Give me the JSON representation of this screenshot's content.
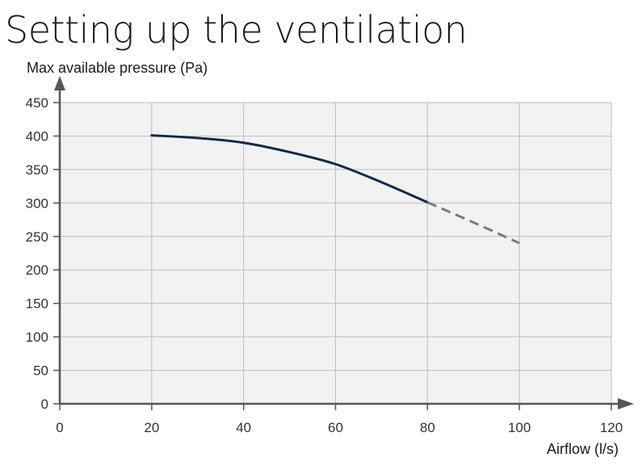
{
  "page": {
    "title": "Setting up the ventilation"
  },
  "chart_data": {
    "type": "line",
    "xlabel": "Airflow (l/s)",
    "ylabel": "Max available pressure (Pa)",
    "xlim": [
      0,
      120
    ],
    "ylim": [
      0,
      450
    ],
    "xticks": [
      0,
      20,
      40,
      60,
      80,
      100,
      120
    ],
    "yticks": [
      0,
      50,
      100,
      150,
      200,
      250,
      300,
      350,
      400,
      450
    ],
    "grid": true,
    "colors": {
      "plot_bg": "#f2f2f2",
      "grid": "#bdbdbd",
      "axis": "#555555",
      "curve": "#0d2a4a",
      "extrapolation": "#7a7a7a"
    },
    "series": [
      {
        "style": "solid",
        "x": [
          20,
          30,
          40,
          50,
          60,
          70,
          80
        ],
        "y": [
          401,
          397,
          390,
          376,
          358,
          331,
          301
        ]
      },
      {
        "style": "dashed",
        "x": [
          80,
          90,
          100
        ],
        "y": [
          301,
          271,
          240
        ]
      }
    ]
  }
}
